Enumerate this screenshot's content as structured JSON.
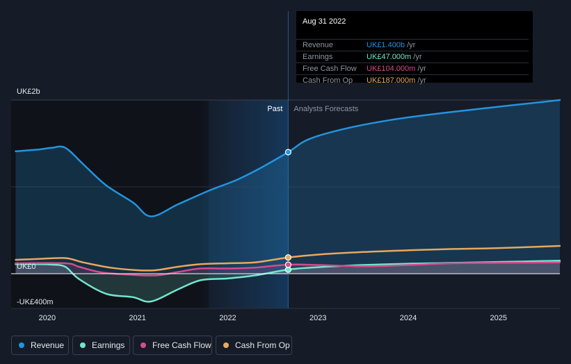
{
  "tooltip": {
    "date": "Aug 31 2022",
    "rows": [
      {
        "label": "Revenue",
        "value": "UK£1.400b",
        "unit": " /yr",
        "color": "#2394df"
      },
      {
        "label": "Earnings",
        "value": "UK£47.000m",
        "unit": " /yr",
        "color": "#73e6ce"
      },
      {
        "label": "Free Cash Flow",
        "value": "UK£104.000m",
        "unit": " /yr",
        "color": "#d44c8d"
      },
      {
        "label": "Cash From Op",
        "value": "UK£187.000m",
        "unit": " /yr",
        "color": "#e8a95b"
      }
    ]
  },
  "legend": [
    {
      "label": "Revenue",
      "color": "#2394df"
    },
    {
      "label": "Earnings",
      "color": "#73e6ce"
    },
    {
      "label": "Free Cash Flow",
      "color": "#d44c8d"
    },
    {
      "label": "Cash From Op",
      "color": "#e8a95b"
    }
  ],
  "chart_data": {
    "type": "line",
    "y_unit": "UK£m",
    "ylim": [
      -400,
      2000
    ],
    "y_tick_labels": [
      {
        "value": 2000,
        "label": "UK£2b"
      },
      {
        "value": 0,
        "label": "UK£0"
      },
      {
        "value": -400,
        "label": "-UK£400m"
      }
    ],
    "xlim": [
      2019.6,
      2025.68
    ],
    "x_tick_labels": [
      "2020",
      "2021",
      "2022",
      "2023",
      "2024",
      "2025"
    ],
    "x_ticks": [
      2020,
      2021,
      2022,
      2023,
      2024,
      2025
    ],
    "past_label": "Past",
    "forecast_label": "Analysts Forecasts",
    "divider_x": 2022.67,
    "highlight_start_x": 2021.67,
    "series": [
      {
        "name": "Revenue",
        "color": "#2394df",
        "fill": true,
        "points": [
          [
            2019.65,
            1410
          ],
          [
            2019.9,
            1430
          ],
          [
            2020.05,
            1450
          ],
          [
            2020.2,
            1450
          ],
          [
            2020.4,
            1260
          ],
          [
            2020.65,
            1020
          ],
          [
            2020.95,
            820
          ],
          [
            2021.15,
            660
          ],
          [
            2021.45,
            800
          ],
          [
            2021.8,
            960
          ],
          [
            2022.1,
            1080
          ],
          [
            2022.35,
            1210
          ],
          [
            2022.67,
            1400
          ],
          [
            2022.9,
            1550
          ],
          [
            2023.3,
            1670
          ],
          [
            2023.8,
            1770
          ],
          [
            2024.3,
            1840
          ],
          [
            2024.8,
            1900
          ],
          [
            2025.68,
            2000
          ]
        ]
      },
      {
        "name": "Earnings",
        "color": "#73e6ce",
        "fill": true,
        "points": [
          [
            2019.65,
            110
          ],
          [
            2019.9,
            110
          ],
          [
            2020.05,
            105
          ],
          [
            2020.2,
            80
          ],
          [
            2020.35,
            -60
          ],
          [
            2020.65,
            -230
          ],
          [
            2020.95,
            -270
          ],
          [
            2021.15,
            -320
          ],
          [
            2021.45,
            -180
          ],
          [
            2021.7,
            -75
          ],
          [
            2022.0,
            -55
          ],
          [
            2022.3,
            -20
          ],
          [
            2022.67,
            47
          ],
          [
            2023.0,
            75
          ],
          [
            2023.5,
            100
          ],
          [
            2024.0,
            115
          ],
          [
            2024.5,
            125
          ],
          [
            2025.0,
            135
          ],
          [
            2025.68,
            150
          ]
        ]
      },
      {
        "name": "Free Cash Flow",
        "color": "#d44c8d",
        "fill": true,
        "points": [
          [
            2019.65,
            120
          ],
          [
            2020.2,
            120
          ],
          [
            2020.35,
            80
          ],
          [
            2020.6,
            15
          ],
          [
            2020.9,
            -10
          ],
          [
            2021.2,
            -20
          ],
          [
            2021.45,
            20
          ],
          [
            2021.7,
            60
          ],
          [
            2022.0,
            60
          ],
          [
            2022.3,
            70
          ],
          [
            2022.67,
            104
          ],
          [
            2023.0,
            100
          ],
          [
            2023.5,
            85
          ],
          [
            2024.0,
            100
          ],
          [
            2024.5,
            120
          ],
          [
            2025.0,
            125
          ],
          [
            2025.68,
            130
          ]
        ]
      },
      {
        "name": "Cash From Op",
        "color": "#e8a95b",
        "fill": false,
        "points": [
          [
            2019.65,
            160
          ],
          [
            2019.9,
            170
          ],
          [
            2020.2,
            180
          ],
          [
            2020.4,
            130
          ],
          [
            2020.7,
            70
          ],
          [
            2021.0,
            40
          ],
          [
            2021.2,
            40
          ],
          [
            2021.45,
            80
          ],
          [
            2021.7,
            110
          ],
          [
            2022.0,
            120
          ],
          [
            2022.3,
            130
          ],
          [
            2022.67,
            187
          ],
          [
            2023.0,
            220
          ],
          [
            2023.5,
            250
          ],
          [
            2024.0,
            270
          ],
          [
            2024.5,
            285
          ],
          [
            2025.0,
            295
          ],
          [
            2025.68,
            320
          ]
        ]
      }
    ]
  }
}
